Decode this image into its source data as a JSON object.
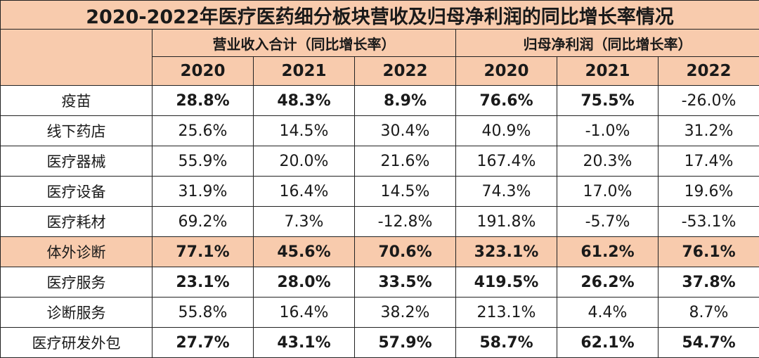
{
  "title": "2020-2022年医疗医药细分板块营收及归母净利润的同比增长率情况",
  "groups": {
    "revenue": "营业收入合计（同比增长率）",
    "profit": "归母净利润（同比增长率）"
  },
  "years": [
    "2020",
    "2021",
    "2022",
    "2020",
    "2021",
    "2022"
  ],
  "rows": [
    {
      "label": "疫苗",
      "values": [
        "28.8%",
        "48.3%",
        "8.9%",
        "76.6%",
        "75.5%",
        "-26.0%"
      ]
    },
    {
      "label": "线下药店",
      "values": [
        "25.6%",
        "14.5%",
        "30.4%",
        "40.9%",
        "-1.0%",
        "31.2%"
      ]
    },
    {
      "label": "医疗器械",
      "values": [
        "55.9%",
        "20.0%",
        "21.6%",
        "167.4%",
        "20.3%",
        "17.4%"
      ]
    },
    {
      "label": "医疗设备",
      "values": [
        "31.9%",
        "16.4%",
        "14.5%",
        "74.3%",
        "17.0%",
        "19.6%"
      ]
    },
    {
      "label": "医疗耗材",
      "values": [
        "69.2%",
        "7.3%",
        "-12.8%",
        "191.8%",
        "-5.7%",
        "-53.1%"
      ]
    },
    {
      "label": "体外诊断",
      "values": [
        "77.1%",
        "45.6%",
        "70.6%",
        "323.1%",
        "61.2%",
        "76.1%"
      ]
    },
    {
      "label": "医疗服务",
      "values": [
        "23.1%",
        "28.0%",
        "33.5%",
        "419.5%",
        "26.2%",
        "37.8%"
      ]
    },
    {
      "label": "诊断服务",
      "values": [
        "55.8%",
        "16.4%",
        "38.2%",
        "213.1%",
        "4.4%",
        "8.7%"
      ]
    },
    {
      "label": "医疗研发外包",
      "values": [
        "27.7%",
        "43.1%",
        "57.9%",
        "58.7%",
        "62.1%",
        "54.7%"
      ]
    }
  ],
  "colors": {
    "header_bg": "#f8cbad",
    "highlight_bg": "#f8cbad",
    "border": "#222222"
  }
}
